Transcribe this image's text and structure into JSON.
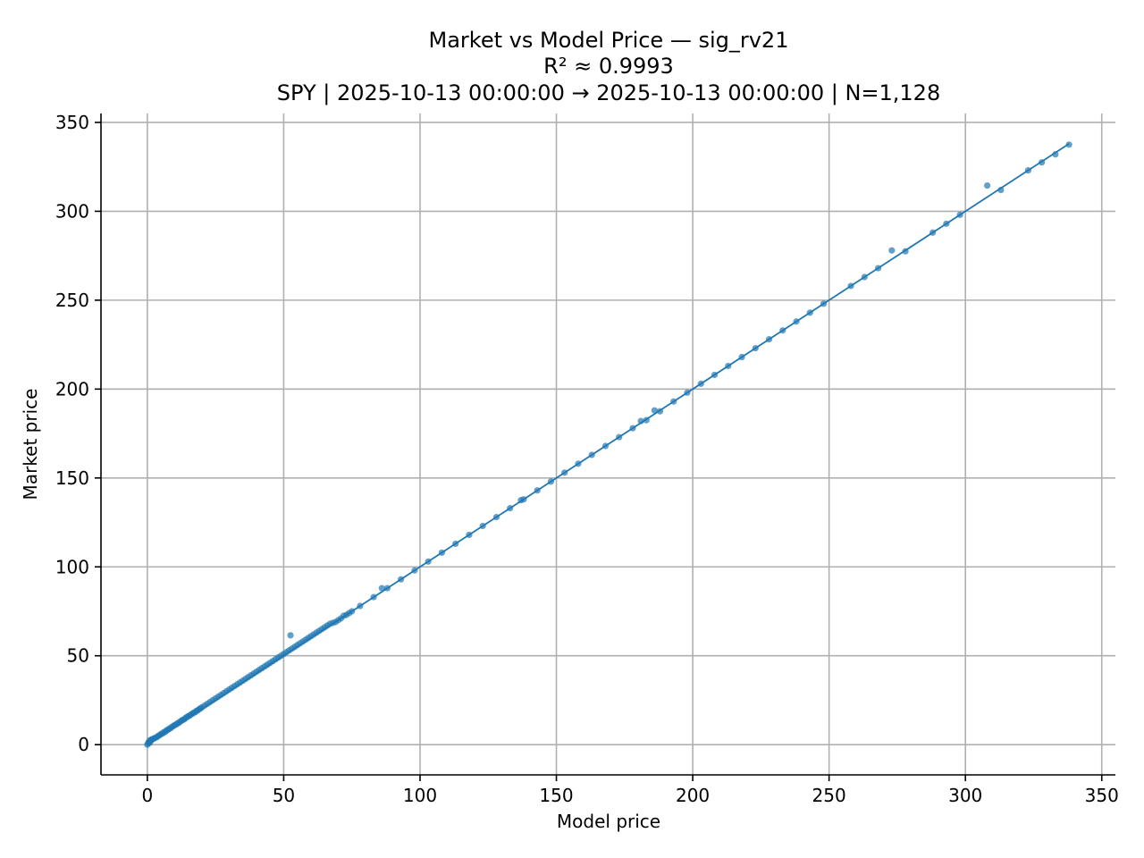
{
  "chart_data": {
    "type": "scatter",
    "title": "Market vs Model Price — sig_rv21",
    "subtitle_r2": "R² ≈ 0.9993",
    "subtitle_range": "SPY | 2025-10-13 00:00:00 → 2025-10-13 00:00:00 | N=1,128",
    "xlabel": "Model price",
    "ylabel": "Market price",
    "xlim": [
      -17,
      355
    ],
    "ylim": [
      -17,
      355
    ],
    "xticks": [
      0,
      50,
      100,
      150,
      200,
      250,
      300,
      350
    ],
    "yticks": [
      0,
      50,
      100,
      150,
      200,
      250,
      300,
      350
    ],
    "xtick_labels": [
      "0",
      "50",
      "100",
      "150",
      "200",
      "250",
      "300",
      "350"
    ],
    "ytick_labels": [
      "0",
      "50",
      "100",
      "150",
      "200",
      "250",
      "300",
      "350"
    ],
    "grid": true,
    "colors": {
      "points": "#1f77b4",
      "fit_line": "#1f77b4",
      "grid": "#b0b0b0"
    },
    "fit_line": {
      "x": [
        0,
        338
      ],
      "y": [
        0,
        338
      ]
    },
    "series": [
      {
        "x": [
          0,
          0.3,
          0.5,
          0.8,
          1,
          1.3,
          1.6,
          2,
          2.5,
          3,
          3.5,
          4,
          4.5,
          5,
          5.5,
          6,
          6.5,
          7,
          7.5,
          8,
          8.5,
          9,
          9.5,
          10,
          10.5,
          11,
          11.5,
          12,
          12.5,
          13,
          13.5,
          14,
          14.5,
          15,
          15.5,
          16,
          16.5,
          17,
          17.5,
          18,
          18.5,
          19,
          19.5,
          20,
          21,
          22,
          23,
          24,
          25,
          26,
          27,
          28,
          29,
          30,
          31,
          32,
          33,
          34,
          35,
          36,
          37,
          38,
          39,
          40,
          41,
          42,
          43,
          44,
          45,
          46,
          47,
          48,
          49,
          50,
          51,
          52,
          52.5,
          53,
          54,
          55,
          56,
          57,
          58,
          59,
          60,
          61,
          62,
          63,
          64,
          65,
          66,
          67,
          68,
          69,
          70,
          71,
          72,
          73,
          74,
          75,
          78,
          83,
          86,
          88,
          93,
          98,
          103,
          108,
          113,
          118,
          123,
          128,
          133,
          137,
          138,
          143,
          148,
          153,
          158,
          163,
          168,
          173,
          178,
          181,
          183,
          186,
          188,
          193,
          198,
          203,
          208,
          213,
          218,
          223,
          228,
          233,
          238,
          243,
          248,
          258,
          263,
          268,
          273,
          278,
          288,
          293,
          298,
          308,
          313,
          323,
          328,
          333,
          338
        ],
        "y": [
          0,
          0.8,
          1.5,
          1,
          2.5,
          2,
          3,
          3.2,
          3.5,
          4,
          4.2,
          5,
          5.3,
          6,
          6.2,
          7,
          7.1,
          8,
          8.3,
          9,
          9.2,
          10,
          10.4,
          11,
          11.3,
          12,
          12.2,
          13,
          13.4,
          14,
          14.2,
          15,
          15.5,
          16,
          16.3,
          17,
          17.4,
          18,
          18.2,
          19,
          19.3,
          20,
          20.4,
          21,
          22,
          23,
          24,
          25,
          26,
          27,
          28,
          29,
          30,
          31,
          32,
          33,
          34,
          35,
          36,
          37,
          38,
          39,
          40,
          41,
          42,
          43,
          44,
          45,
          46,
          47,
          48,
          49,
          50,
          51,
          52,
          53,
          61.5,
          54,
          55,
          56,
          57,
          58,
          59,
          60,
          61,
          62,
          63,
          64,
          65,
          66,
          67,
          68,
          68.5,
          69,
          70,
          71,
          72.5,
          73,
          74,
          75,
          78,
          83,
          88,
          88,
          93,
          98,
          103,
          108,
          113,
          118,
          123,
          128,
          133,
          137.5,
          138,
          143,
          148,
          153,
          158,
          163,
          168,
          173,
          178,
          182,
          182.5,
          188,
          187.5,
          193,
          198,
          203,
          208,
          213,
          218,
          223,
          228,
          233,
          238,
          243,
          248,
          258,
          263,
          268,
          278,
          277.5,
          288,
          293,
          298,
          314.5,
          312,
          323,
          327.5,
          332,
          337.5
        ]
      }
    ]
  }
}
